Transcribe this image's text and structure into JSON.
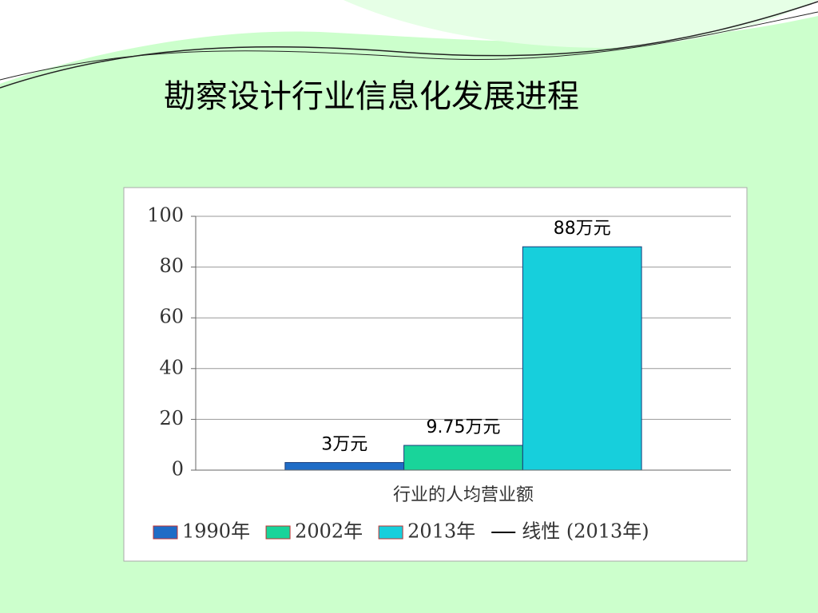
{
  "chart_data": {
    "type": "bar",
    "title": "勘察设计行业信息化发展进程",
    "categories": [
      "行业的人均营业额"
    ],
    "series": [
      {
        "name": "1990年",
        "color": "#1f6cc6",
        "values": [
          3
        ],
        "value_labels": [
          "3万元"
        ]
      },
      {
        "name": "2002年",
        "color": "#19d49a",
        "values": [
          9.75
        ],
        "value_labels": [
          "9.75万元"
        ]
      },
      {
        "name": "2013年",
        "color": "#17cfdc",
        "values": [
          88
        ],
        "value_labels": [
          "88万元"
        ]
      }
    ],
    "trendline": {
      "name": "线性 (2013年)",
      "color": "#000000"
    },
    "ylim": [
      0,
      100
    ],
    "yticks": [
      0,
      20,
      40,
      60,
      80,
      100
    ],
    "grid": true
  }
}
